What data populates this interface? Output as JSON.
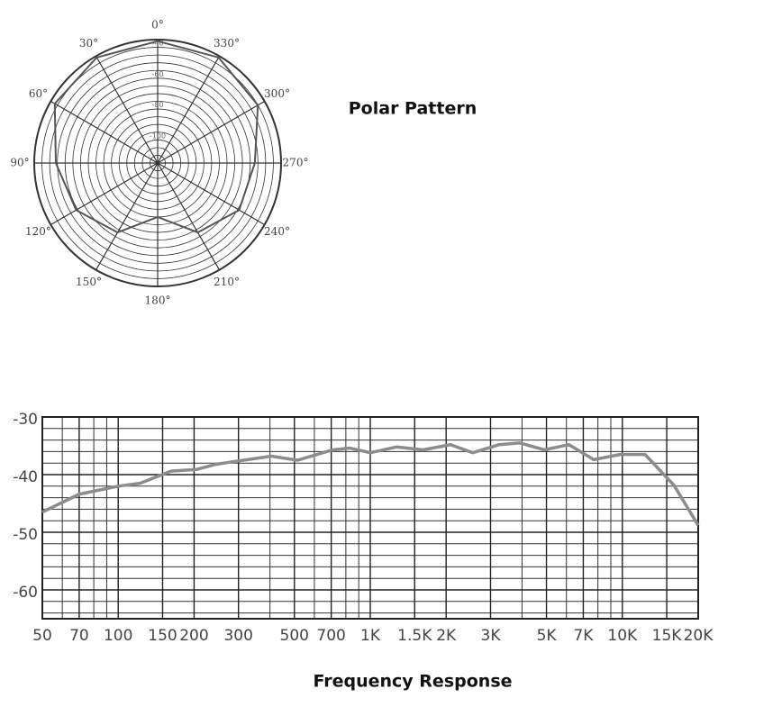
{
  "chart_data": [
    {
      "type": "polar",
      "title": "Polar Pattern",
      "theta": [
        0,
        30,
        60,
        90,
        120,
        150,
        180,
        210,
        240,
        270,
        300,
        330
      ],
      "values": [
        -41,
        -41,
        -43,
        -54,
        -59,
        -68,
        -85,
        -68,
        -59,
        -57,
        -45,
        -41
      ],
      "color": "#555555",
      "rlim": [
        -120,
        -40
      ],
      "rticks": [
        -40,
        -60,
        -80,
        -100
      ],
      "rgrid": [
        -115,
        -110,
        -105,
        -100,
        -95,
        -90,
        -85,
        -80,
        -75,
        -70,
        -65,
        -60,
        -55,
        -50,
        -45,
        -40
      ],
      "angle_ticks": [
        {
          "value": 0,
          "label": "0°"
        },
        {
          "value": 30,
          "label": "30°"
        },
        {
          "value": 60,
          "label": "60°"
        },
        {
          "value": 90,
          "label": "90°"
        },
        {
          "value": 120,
          "label": "120°"
        },
        {
          "value": 150,
          "label": "150°"
        },
        {
          "value": 180,
          "label": "180°"
        },
        {
          "value": 210,
          "label": "210°"
        },
        {
          "value": 240,
          "label": "240°"
        },
        {
          "value": 270,
          "label": "270°"
        },
        {
          "value": 300,
          "label": "300°"
        },
        {
          "value": 330,
          "label": "330°"
        }
      ]
    },
    {
      "type": "line",
      "title": "Frequency Response",
      "log_x": true,
      "grid": true,
      "x": [
        50,
        70,
        100,
        122,
        162,
        205,
        245,
        314,
        405,
        515,
        710,
        830,
        1000,
        1270,
        1620,
        2080,
        2550,
        3250,
        3920,
        4900,
        6140,
        7700,
        9800,
        12300,
        16000,
        20000
      ],
      "series": [
        {
          "color": "#8c8c8c",
          "values": [
            -46.5,
            -43.4,
            -42,
            -41.5,
            -39.4,
            -39.1,
            -38.2,
            -37.5,
            -36.8,
            -37.5,
            -35.7,
            -35.4,
            -36.2,
            -35.2,
            -35.7,
            -34.8,
            -36.2,
            -34.8,
            -34.5,
            -35.7,
            -34.8,
            -37.4,
            -36.5,
            -36.5,
            -41.8,
            -48.8
          ]
        }
      ],
      "xlim": [
        50,
        20000
      ],
      "xticks": [
        50,
        70,
        100,
        150,
        200,
        300,
        500,
        700,
        {
          "value": 1000,
          "label": "1K"
        },
        {
          "value": 1500,
          "label": "1.5K"
        },
        {
          "value": 2000,
          "label": "2K"
        },
        {
          "value": 3000,
          "label": "3K"
        },
        {
          "value": 5000,
          "label": "5K"
        },
        {
          "value": 7000,
          "label": "7K"
        },
        {
          "value": 10000,
          "label": "10K"
        },
        {
          "value": 15000,
          "label": "15K"
        },
        {
          "value": 20000,
          "label": "20K"
        }
      ],
      "xminorticks": [
        60,
        80,
        90,
        400,
        600,
        800,
        900,
        4000,
        6000,
        8000,
        9000
      ],
      "ylim": [
        -65,
        -30
      ],
      "yticks": [
        -30,
        -40,
        -50,
        -60
      ],
      "yminorticks": [
        -32,
        -34,
        -36,
        -38,
        -42,
        -44,
        -46,
        -48,
        -52,
        -54,
        -56,
        -58,
        -62,
        -64
      ]
    }
  ]
}
